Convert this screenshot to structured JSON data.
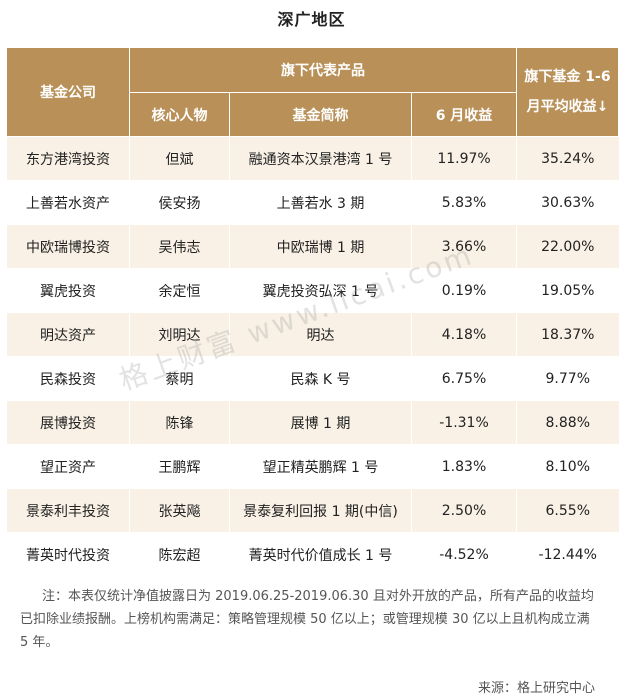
{
  "title": "深广地区",
  "headers": {
    "company": "基金公司",
    "products_group": "旗下代表产品",
    "core_person": "核心人物",
    "fund_name": "基金简称",
    "june_return": "6 月收益",
    "avg_line1": "旗下基金 1-6",
    "avg_line2": "月平均收益↓"
  },
  "rows": [
    {
      "company": "东方港湾投资",
      "person": "但斌",
      "fund": "融通资本汉景港湾 1 号",
      "june": "11.97%",
      "avg": "35.24%"
    },
    {
      "company": "上善若水资产",
      "person": "侯安扬",
      "fund": "上善若水 3 期",
      "june": "5.83%",
      "avg": "30.63%"
    },
    {
      "company": "中欧瑞博投资",
      "person": "吴伟志",
      "fund": "中欧瑞博 1 期",
      "june": "3.66%",
      "avg": "22.00%"
    },
    {
      "company": "翼虎投资",
      "person": "余定恒",
      "fund": "翼虎投资弘深 1 号",
      "june": "0.19%",
      "avg": "19.05%"
    },
    {
      "company": "明达资产",
      "person": "刘明达",
      "fund": "明达",
      "june": "4.18%",
      "avg": "18.37%"
    },
    {
      "company": "民森投资",
      "person": "蔡明",
      "fund": "民森 K 号",
      "june": "6.75%",
      "avg": "9.77%"
    },
    {
      "company": "展博投资",
      "person": "陈锋",
      "fund": "展博 1 期",
      "june": "-1.31%",
      "avg": "8.88%"
    },
    {
      "company": "望正资产",
      "person": "王鹏辉",
      "fund": "望正精英鹏辉 1 号",
      "june": "1.83%",
      "avg": "8.10%"
    },
    {
      "company": "景泰利丰投资",
      "person": "张英飚",
      "fund": "景泰复利回报 1 期(中信)",
      "june": "2.50%",
      "avg": "6.55%"
    },
    {
      "company": "菁英时代投资",
      "person": "陈宏超",
      "fund": "菁英时代价值成长 1 号",
      "june": "-4.52%",
      "avg": "-12.44%"
    }
  ],
  "note": "注：本表仅统计净值披露日为 2019.06.25-2019.06.30 且对外开放的产品，所有产品的收益均已扣除业绩报酬。上榜机构需满足：策略管理规模 50 亿以上；或管理规模 30 亿以上且机构成立满 5 年。",
  "source": "来源：格上研究中心",
  "watermark": "格上财富  www.licai.com"
}
